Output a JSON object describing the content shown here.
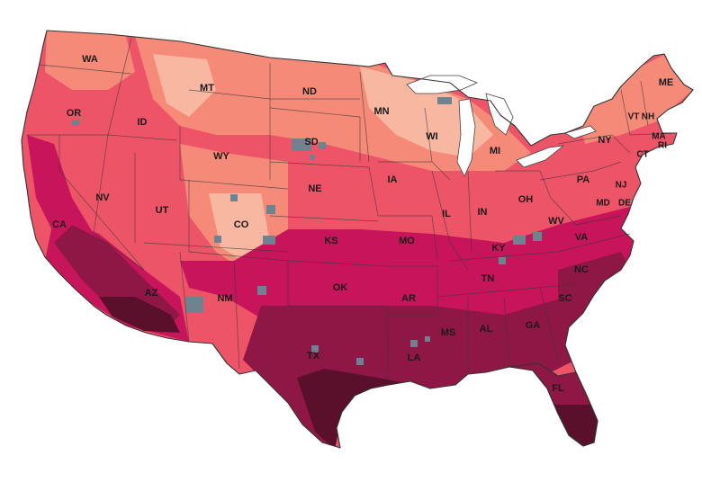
{
  "map": {
    "palette": {
      "level1": "#f7b7a0",
      "level2": "#f58a78",
      "level3": "#ee5468",
      "level4": "#c8145a",
      "level5": "#8f1745",
      "level6": "#5a0f2b",
      "no_data": "#6e8290",
      "water": "#ffffff",
      "background": "#ffffff"
    },
    "state_labels": [
      {
        "abbr": "WA"
      },
      {
        "abbr": "OR"
      },
      {
        "abbr": "CA"
      },
      {
        "abbr": "NV"
      },
      {
        "abbr": "ID"
      },
      {
        "abbr": "MT"
      },
      {
        "abbr": "WY"
      },
      {
        "abbr": "UT"
      },
      {
        "abbr": "AZ"
      },
      {
        "abbr": "CO"
      },
      {
        "abbr": "NM"
      },
      {
        "abbr": "ND"
      },
      {
        "abbr": "SD"
      },
      {
        "abbr": "NE"
      },
      {
        "abbr": "KS"
      },
      {
        "abbr": "OK"
      },
      {
        "abbr": "TX"
      },
      {
        "abbr": "MN"
      },
      {
        "abbr": "IA"
      },
      {
        "abbr": "MO"
      },
      {
        "abbr": "AR"
      },
      {
        "abbr": "LA"
      },
      {
        "abbr": "WI"
      },
      {
        "abbr": "IL"
      },
      {
        "abbr": "MI"
      },
      {
        "abbr": "IN"
      },
      {
        "abbr": "OH"
      },
      {
        "abbr": "KY"
      },
      {
        "abbr": "TN"
      },
      {
        "abbr": "MS"
      },
      {
        "abbr": "AL"
      },
      {
        "abbr": "GA"
      },
      {
        "abbr": "FL"
      },
      {
        "abbr": "SC"
      },
      {
        "abbr": "NC"
      },
      {
        "abbr": "VA"
      },
      {
        "abbr": "WV"
      },
      {
        "abbr": "PA"
      },
      {
        "abbr": "NY"
      },
      {
        "abbr": "VT"
      },
      {
        "abbr": "NH"
      },
      {
        "abbr": "ME"
      },
      {
        "abbr": "MA"
      },
      {
        "abbr": "RI"
      },
      {
        "abbr": "CT"
      },
      {
        "abbr": "NJ"
      },
      {
        "abbr": "DE"
      },
      {
        "abbr": "MD"
      }
    ]
  }
}
